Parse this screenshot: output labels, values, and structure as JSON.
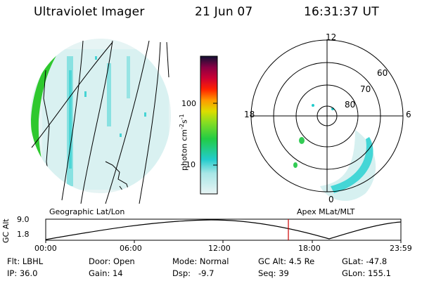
{
  "header": {
    "title": "Ultraviolet Imager",
    "date": "21 Jun 07",
    "time": "16:31:37 UT"
  },
  "colorbar": {
    "unit_label": "photon cm-2s-1",
    "unit_base": "photon cm",
    "unit_mid": "-2",
    "unit_s": "s",
    "unit_end": "-1",
    "tick_100": "100",
    "tick_10": "10"
  },
  "polar_plot": {
    "labels": {
      "top": "12",
      "left": "18",
      "right": "6",
      "bottom": "0",
      "ring60": "60",
      "ring70": "70",
      "ring80": "80"
    }
  },
  "altitude_panel": {
    "left_caption": "Geographic Lat/Lon",
    "right_caption": "Apex MLat/MLT",
    "ylabel": "GC Alt",
    "y_top": "9.0",
    "y_bottom": "1.8",
    "x_ticks": [
      "00:00",
      "06:00",
      "12:00",
      "18:00",
      "23:59"
    ]
  },
  "info": {
    "flt": "Flt: LBHL",
    "ip": "IP: 36.0",
    "door": "Door: Open",
    "gain": "Gain: 14",
    "mode": "Mode: Normal",
    "dsp": "Dsp:   -9.7",
    "gcalt": "GC Alt: 4.5 Re",
    "seq": "Seq: 39",
    "glat": "GLat: -47.8",
    "glon": "GLon: 155.1"
  },
  "colors": {
    "green": "#22cc22",
    "cyan": "#33d6d6",
    "light_cyan": "#bfe9e9",
    "cursor": "#cc0000"
  }
}
